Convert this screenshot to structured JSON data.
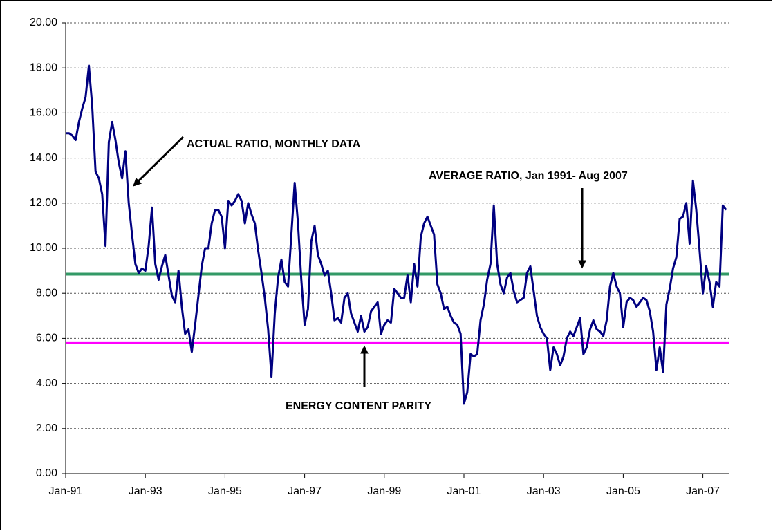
{
  "chart_data": {
    "type": "line",
    "categories": [
      "Jan-91",
      null,
      null,
      null,
      null,
      null,
      null,
      null,
      null,
      null,
      null,
      null,
      null,
      null,
      null,
      null,
      null,
      null,
      null,
      null,
      null,
      null,
      null,
      null,
      "Jan-93",
      null,
      null,
      null,
      null,
      null,
      null,
      null,
      null,
      null,
      null,
      null,
      null,
      null,
      null,
      null,
      null,
      null,
      null,
      null,
      null,
      null,
      null,
      null,
      "Jan-95",
      null,
      null,
      null,
      null,
      null,
      null,
      null,
      null,
      null,
      null,
      null,
      null,
      null,
      null,
      null,
      null,
      null,
      null,
      null,
      null,
      null,
      null,
      null,
      "Jan-97",
      null,
      null,
      null,
      null,
      null,
      null,
      null,
      null,
      null,
      null,
      null,
      null,
      null,
      null,
      null,
      null,
      null,
      null,
      null,
      null,
      null,
      null,
      null,
      "Jan-99",
      null,
      null,
      null,
      null,
      null,
      null,
      null,
      null,
      null,
      null,
      null,
      null,
      null,
      null,
      null,
      null,
      null,
      null,
      null,
      null,
      null,
      null,
      null,
      "Jan-01",
      null,
      null,
      null,
      null,
      null,
      null,
      null,
      null,
      null,
      null,
      null,
      null,
      null,
      null,
      null,
      null,
      null,
      null,
      null,
      null,
      null,
      null,
      null,
      "Jan-03",
      null,
      null,
      null,
      null,
      null,
      null,
      null,
      null,
      null,
      null,
      null,
      null,
      null,
      null,
      null,
      null,
      null,
      null,
      null,
      null,
      null,
      null,
      null,
      "Jan-05",
      null,
      null,
      null,
      null,
      null,
      null,
      null,
      null,
      null,
      null,
      null,
      null,
      null,
      null,
      null,
      null,
      null,
      null,
      null,
      null,
      null,
      null,
      null,
      "Jan-07",
      null,
      null,
      null,
      null,
      null,
      null,
      null
    ],
    "series": [
      {
        "color": "#000080",
        "values": [
          15.1,
          15.1,
          15.0,
          14.8,
          15.6,
          16.2,
          16.7,
          18.1,
          16.3,
          13.4,
          13.1,
          12.4,
          10.1,
          14.7,
          15.6,
          14.8,
          13.8,
          13.1,
          14.3,
          12.0,
          10.6,
          9.3,
          8.9,
          9.1,
          9.0,
          10.1,
          11.8,
          9.3,
          8.6,
          9.2,
          9.7,
          8.8,
          7.9,
          7.6,
          9.0,
          7.4,
          6.2,
          6.4,
          5.4,
          6.6,
          7.9,
          9.2,
          10.0,
          10.0,
          11.1,
          11.7,
          11.7,
          11.4,
          10.0,
          12.1,
          11.9,
          12.1,
          12.4,
          12.1,
          11.1,
          12.0,
          11.5,
          11.1,
          9.9,
          8.9,
          7.8,
          6.4,
          4.3,
          7.1,
          8.7,
          9.5,
          8.5,
          8.3,
          10.6,
          12.9,
          11.1,
          8.6,
          6.6,
          7.3,
          10.3,
          11.0,
          9.7,
          9.3,
          8.8,
          9.0,
          8.0,
          6.8,
          6.9,
          6.7,
          7.8,
          8.0,
          7.1,
          6.7,
          6.3,
          7.0,
          6.3,
          6.5,
          7.2,
          7.4,
          7.6,
          6.2,
          6.6,
          6.8,
          6.7,
          8.2,
          8.0,
          7.8,
          7.8,
          8.8,
          7.6,
          9.3,
          8.3,
          10.5,
          11.1,
          11.4,
          11.0,
          10.6,
          8.4,
          8.0,
          7.3,
          7.4,
          7.0,
          6.7,
          6.6,
          6.2,
          3.1,
          3.6,
          5.3,
          5.2,
          5.3,
          6.8,
          7.5,
          8.6,
          9.3,
          11.9,
          9.3,
          8.4,
          8.0,
          8.7,
          8.9,
          8.1,
          7.6,
          7.7,
          7.8,
          8.9,
          9.2,
          8.1,
          7.0,
          6.5,
          6.2,
          6.0,
          4.6,
          5.6,
          5.3,
          4.8,
          5.2,
          6.0,
          6.3,
          6.1,
          6.5,
          6.9,
          5.3,
          5.6,
          6.4,
          6.8,
          6.4,
          6.3,
          6.1,
          6.8,
          8.3,
          8.9,
          8.3,
          8.0,
          6.5,
          7.6,
          7.8,
          7.7,
          7.4,
          7.6,
          7.8,
          7.7,
          7.2,
          6.3,
          4.6,
          5.6,
          4.5,
          7.5,
          8.2,
          9.1,
          9.6,
          11.3,
          11.4,
          12.0,
          10.2,
          13.0,
          11.7,
          9.9,
          8.0,
          9.2,
          8.5,
          7.4,
          8.5,
          8.3,
          11.9,
          11.7
        ]
      }
    ],
    "reference_lines": [
      {
        "value": 8.85,
        "color": "#339966"
      },
      {
        "value": 5.8,
        "color": "#ff00ff"
      }
    ],
    "annotations": [
      "ACTUAL RATIO, MONTHLY DATA",
      "AVERAGE RATIO, Jan 1991- Aug 2007",
      "ENERGY CONTENT PARITY"
    ],
    "ylim": [
      0,
      20
    ],
    "yticks": [
      {
        "value": 0,
        "label": "0.00"
      },
      {
        "value": 2,
        "label": "2.00"
      },
      {
        "value": 4,
        "label": "4.00"
      },
      {
        "value": 6,
        "label": "6.00"
      },
      {
        "value": 8,
        "label": "8.00"
      },
      {
        "value": 10,
        "label": "10.00"
      },
      {
        "value": 12,
        "label": "12.00"
      },
      {
        "value": 14,
        "label": "14.00"
      },
      {
        "value": 16,
        "label": "16.00"
      },
      {
        "value": 18,
        "label": "18.00"
      },
      {
        "value": 20,
        "label": "20.00"
      }
    ],
    "grid": true
  }
}
